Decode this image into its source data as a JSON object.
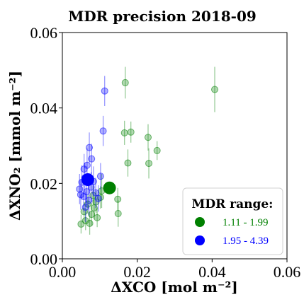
{
  "chart_data": {
    "type": "scatter",
    "title": "MDR precision 2018-09",
    "xlabel": "ΔXCO [mol m⁻²]",
    "ylabel": "ΔXNO₂ [mmol m⁻²]",
    "xlim": [
      0.0,
      0.06
    ],
    "ylim": [
      0.0,
      0.06
    ],
    "x_ticks": [
      "0.00",
      "0.02",
      "0.04",
      "0.06"
    ],
    "y_ticks": [
      "0.00",
      "0.02",
      "0.04",
      "0.06"
    ],
    "x_tick_values": [
      0.0,
      0.02,
      0.04,
      0.06
    ],
    "y_tick_values": [
      0.0,
      0.02,
      0.04,
      0.06
    ],
    "grid": false,
    "legend": {
      "title": "MDR range:",
      "placement": "lower-right",
      "entries": [
        {
          "label": "1.11 - 1.99",
          "color": "#008000"
        },
        {
          "label": "1.95 - 4.39",
          "color": "#0000ff"
        }
      ]
    },
    "series": [
      {
        "name": "1.11 - 1.99",
        "color": "#008000",
        "points": [
          {
            "x": 0.0168,
            "y": 0.0467,
            "err": 0.0042
          },
          {
            "x": 0.0407,
            "y": 0.0449,
            "err": 0.006
          },
          {
            "x": 0.0166,
            "y": 0.0334,
            "err": 0.0032
          },
          {
            "x": 0.0183,
            "y": 0.0336,
            "err": 0.0028
          },
          {
            "x": 0.0229,
            "y": 0.0322,
            "err": 0.0035
          },
          {
            "x": 0.0253,
            "y": 0.0287,
            "err": 0.0025
          },
          {
            "x": 0.0231,
            "y": 0.0253,
            "err": 0.004
          },
          {
            "x": 0.0175,
            "y": 0.0254,
            "err": 0.0036
          },
          {
            "x": 0.0148,
            "y": 0.0158,
            "err": 0.003
          },
          {
            "x": 0.0149,
            "y": 0.012,
            "err": 0.0035
          },
          {
            "x": 0.0105,
            "y": 0.018,
            "err": 0.0045
          },
          {
            "x": 0.0102,
            "y": 0.0163,
            "err": 0.003
          },
          {
            "x": 0.009,
            "y": 0.0151,
            "err": 0.003
          },
          {
            "x": 0.0085,
            "y": 0.0135,
            "err": 0.003
          },
          {
            "x": 0.0078,
            "y": 0.0118,
            "err": 0.003
          },
          {
            "x": 0.0093,
            "y": 0.0109,
            "err": 0.0025
          },
          {
            "x": 0.0073,
            "y": 0.0094,
            "err": 0.003
          },
          {
            "x": 0.0068,
            "y": 0.0145,
            "err": 0.0025
          },
          {
            "x": 0.0062,
            "y": 0.0101,
            "err": 0.0025
          },
          {
            "x": 0.0058,
            "y": 0.0125,
            "err": 0.0025
          },
          {
            "x": 0.005,
            "y": 0.0092,
            "err": 0.0025
          },
          {
            "x": 0.0082,
            "y": 0.0168,
            "err": 0.0025
          }
        ],
        "summary_point": {
          "x": 0.0126,
          "y": 0.0188
        }
      },
      {
        "name": "1.95 - 4.39",
        "color": "#0000ff",
        "points": [
          {
            "x": 0.0113,
            "y": 0.0445,
            "err": 0.004
          },
          {
            "x": 0.0109,
            "y": 0.0339,
            "err": 0.004
          },
          {
            "x": 0.0102,
            "y": 0.0219,
            "err": 0.0035
          },
          {
            "x": 0.0078,
            "y": 0.0265,
            "err": 0.004
          },
          {
            "x": 0.0072,
            "y": 0.0295,
            "err": 0.004
          },
          {
            "x": 0.0066,
            "y": 0.0248,
            "err": 0.0045
          },
          {
            "x": 0.0058,
            "y": 0.0238,
            "err": 0.004
          },
          {
            "x": 0.006,
            "y": 0.0215,
            "err": 0.004
          },
          {
            "x": 0.0052,
            "y": 0.0203,
            "err": 0.0045
          },
          {
            "x": 0.0046,
            "y": 0.0185,
            "err": 0.004
          },
          {
            "x": 0.0049,
            "y": 0.017,
            "err": 0.004
          },
          {
            "x": 0.0057,
            "y": 0.0165,
            "err": 0.004
          },
          {
            "x": 0.0065,
            "y": 0.0178,
            "err": 0.004
          },
          {
            "x": 0.0071,
            "y": 0.0155,
            "err": 0.004
          },
          {
            "x": 0.0077,
            "y": 0.019,
            "err": 0.004
          },
          {
            "x": 0.0062,
            "y": 0.0137,
            "err": 0.004
          },
          {
            "x": 0.0083,
            "y": 0.0205,
            "err": 0.004
          },
          {
            "x": 0.0089,
            "y": 0.0175,
            "err": 0.004
          },
          {
            "x": 0.0096,
            "y": 0.016,
            "err": 0.0035
          }
        ],
        "summary_point": {
          "x": 0.0068,
          "y": 0.021
        }
      }
    ]
  }
}
